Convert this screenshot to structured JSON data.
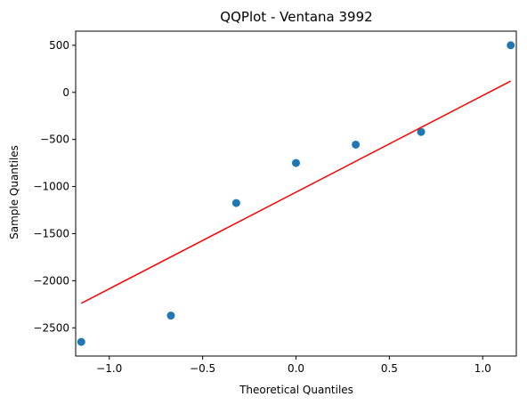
{
  "chart_data": {
    "type": "scatter",
    "title": "QQPlot - Ventana 3992",
    "xlabel": "Theoretical Quantiles",
    "ylabel": "Sample Quantiles",
    "xlim": [
      -1.18,
      1.18
    ],
    "ylim": [
      -2800,
      650
    ],
    "xticks": [
      -1.0,
      -0.5,
      0.0,
      0.5,
      1.0
    ],
    "xtick_labels": [
      "−1.0",
      "−0.5",
      "0.0",
      "0.5",
      "1.0"
    ],
    "yticks": [
      500,
      0,
      -500,
      -1000,
      -1500,
      -2000,
      -2500
    ],
    "ytick_labels": [
      "500",
      "0",
      "−500",
      "−1000",
      "−1500",
      "−2000",
      "−2500"
    ],
    "grid": false,
    "series": [
      {
        "kind": "points",
        "color": "#1f77b4",
        "x": [
          -1.15,
          -0.67,
          -0.32,
          0.0,
          0.32,
          0.67,
          1.15
        ],
        "y": [
          -2650,
          -2370,
          -1175,
          -750,
          -555,
          -420,
          500
        ]
      },
      {
        "kind": "line",
        "color": "#ff0000",
        "x": [
          -1.15,
          1.15
        ],
        "y": [
          -2240,
          120
        ]
      }
    ]
  }
}
